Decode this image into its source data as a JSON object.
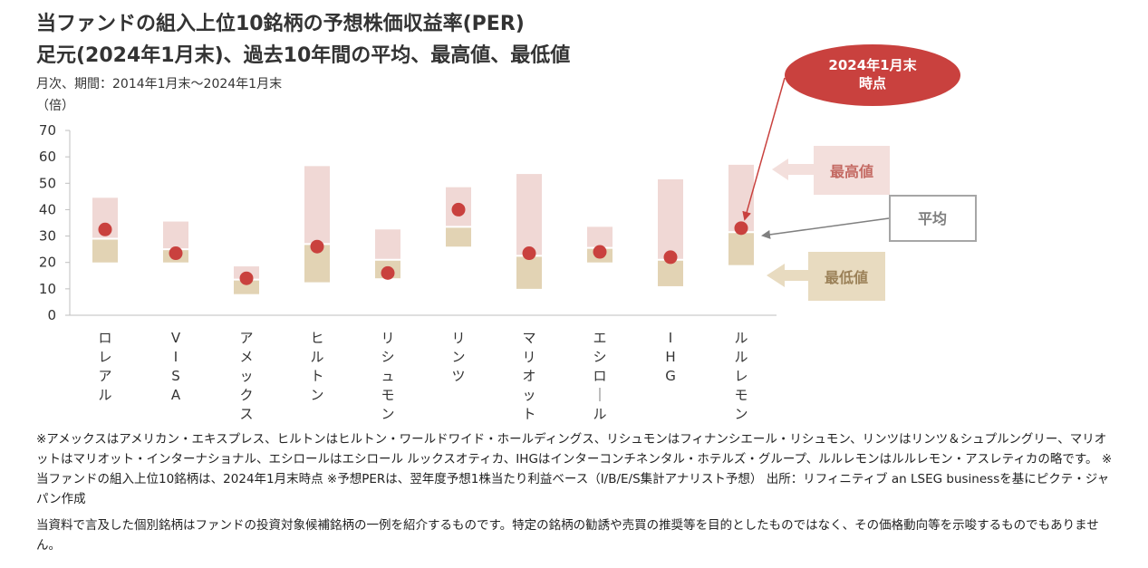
{
  "title_line1": "当ファンドの組入上位10銘柄の予想株価収益率(PER)",
  "title_line2": "足元(2024年1月末)、過去10年間の平均、最高値、最低値",
  "subtitle": "月次、期間：2014年1月末～2024年1月末",
  "unit_label": "（倍）",
  "callouts": {
    "current": [
      "2024年1月末",
      "時点"
    ],
    "max": "最高値",
    "avg": "平均",
    "min": "最低値"
  },
  "notes": {
    "note1": "※アメックスはアメリカン・エキスプレス、ヒルトンはヒルトン・ワールドワイド・ホールディングス、リシュモンはフィナンシエール・リシュモン、リンツはリンツ＆シュプルングリー、マリオットはマリオット・インターナショナル、エシロールはエシロール ルックスオティカ、IHGはインターコンチネンタル・ホテルズ・グループ、ルルレモンはルルレモン・アスレティカの略です。 ※当ファンドの組入上位10銘柄は、2024年1月末時点 ※予想PERは、翌年度予想1株当たり利益ベース（I/B/E/S集計アナリスト予想） 出所：リフィニティブ an LSEG businessを基にピクテ・ジャパン作成",
    "note2": "当資料で言及した個別銘柄はファンドの投資対象候補銘柄の一例を紹介するものです。特定の銘柄の勧誘や売買の推奨等を目的としたものではなく、その価格動向等を示唆するものでもありません。"
  },
  "colors": {
    "upper_range": "#f0d8d5",
    "lower_range": "#e2d3b4",
    "current_point": "#c9413e",
    "callout_current": "#c9413e",
    "callout_max_bg": "#f3dfdc",
    "callout_max_text": "#c46a63",
    "callout_avg_border": "#a6a6a6",
    "callout_avg_text": "#7f7f7f",
    "callout_min_bg": "#e8dbc0",
    "callout_min_text": "#9b8158"
  },
  "chart_data": {
    "type": "range-bar",
    "categories": [
      "ロレアル",
      "VISA",
      "アメックス",
      "ヒルトン",
      "リシュモン",
      "リンツ",
      "マリオット",
      "エシロール",
      "IHG",
      "ルルレモン"
    ],
    "series": [
      {
        "name": "最高値",
        "values": [
          44.5,
          35.5,
          18.5,
          56.5,
          32.5,
          48.5,
          53.5,
          33.5,
          51.5,
          57
        ]
      },
      {
        "name": "平均",
        "values": [
          29,
          25,
          13.5,
          27,
          21,
          33.5,
          22.5,
          25.5,
          21,
          31.5
        ]
      },
      {
        "name": "最低値",
        "values": [
          20,
          20,
          8,
          12.5,
          14,
          26,
          10,
          20,
          11,
          19
        ]
      },
      {
        "name": "2024年1月末時点",
        "values": [
          32.5,
          23.5,
          14,
          26,
          16,
          40,
          23.5,
          24,
          22,
          33
        ]
      }
    ],
    "ylim": [
      0,
      70
    ],
    "yticks": [
      "0",
      "10",
      "20",
      "30",
      "40",
      "50",
      "60",
      "70"
    ],
    "grid": false
  }
}
